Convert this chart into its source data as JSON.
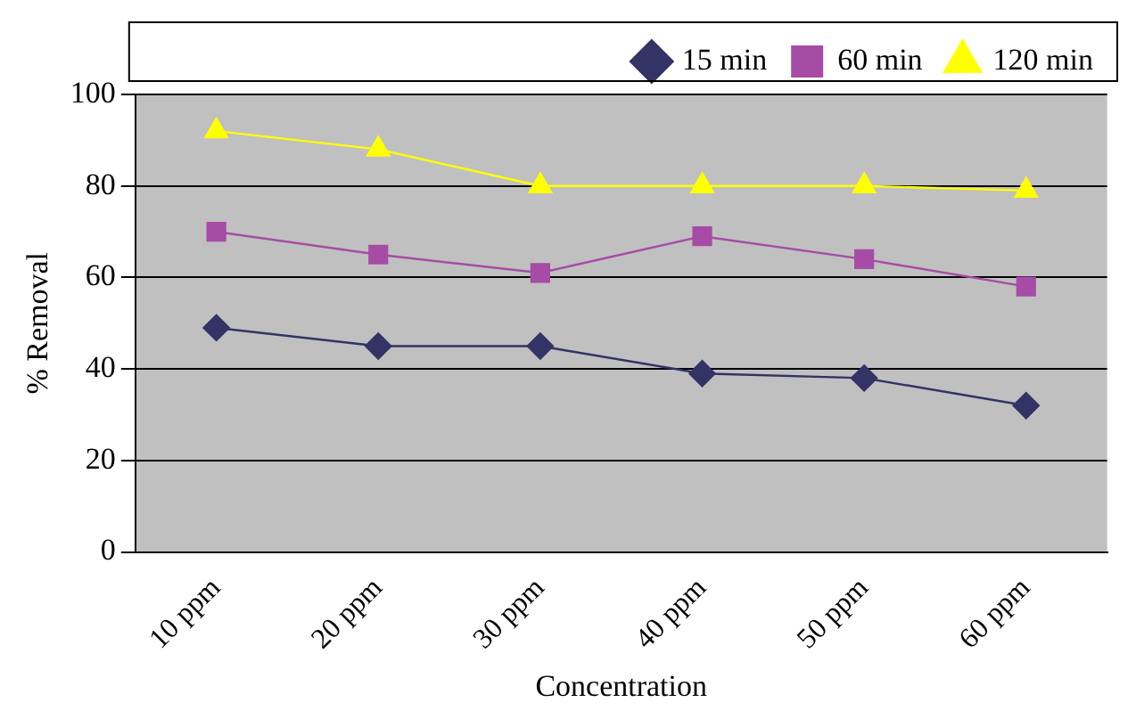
{
  "chart_data": {
    "type": "line",
    "xlabel": "Concentration",
    "ylabel": "% Removal",
    "categories": [
      "10 ppm",
      "20 ppm",
      "30 ppm",
      "40 ppm",
      "50 ppm",
      "60 ppm"
    ],
    "series": [
      {
        "name": "15 min",
        "color": "#333366",
        "marker": "diamond",
        "values": [
          49,
          45,
          45,
          39,
          38,
          32
        ]
      },
      {
        "name": "60 min",
        "color": "#a64ca6",
        "marker": "square",
        "values": [
          70,
          65,
          61,
          69,
          64,
          58
        ]
      },
      {
        "name": "120 min",
        "color": "#ffff00",
        "marker": "triangle",
        "values": [
          92,
          88,
          80,
          80,
          80,
          79
        ]
      }
    ],
    "ylim": [
      0,
      100
    ],
    "yticks": [
      0,
      20,
      40,
      60,
      80,
      100
    ],
    "grid": "y",
    "legend": "top right"
  }
}
